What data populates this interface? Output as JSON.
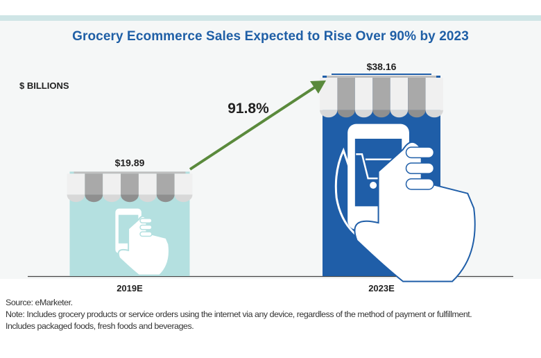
{
  "title": "Grocery Ecommerce Sales Expected to Rise Over 90% by 2023",
  "unit_label": "$ BILLIONS",
  "growth_label": "91.8%",
  "chart_data": {
    "type": "bar",
    "categories": [
      "2019E",
      "2023E"
    ],
    "values": [
      19.89,
      38.16
    ],
    "value_labels": [
      "$19.89",
      "$38.16"
    ],
    "ylabel": "$ BILLIONS",
    "annotation": "91.8%",
    "colors": [
      "#b4e0e0",
      "#1f5ea8"
    ]
  },
  "colors": {
    "title": "#1f5fa6",
    "arrow": "#5a8a3c",
    "bar_2019": "#b4e0e0",
    "bar_2023": "#1f5ea8",
    "awning_light": "#f2f2f2",
    "awning_dark": "#a9a9a9"
  },
  "icons": [
    "shopping-cart-icon",
    "hand-smartphone-icon",
    "store-awning-icon"
  ],
  "source": [
    "Source: eMarketer.",
    "Note: Includes grocery products or service orders using the internet via any device, regardless of the method of payment or fulfillment.",
    "Includes packaged foods, fresh foods and beverages."
  ]
}
